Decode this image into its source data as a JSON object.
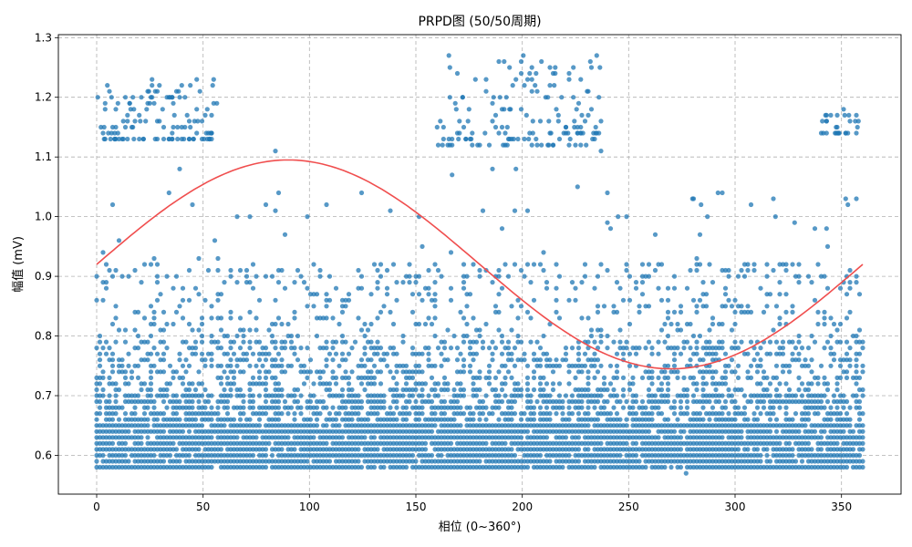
{
  "chart_data": {
    "type": "scatter",
    "title": "PRPD图 (50/50周期)",
    "xlabel": "相位 (0~360°)",
    "ylabel": "幅值 (mV)",
    "xlim": [
      -18,
      378
    ],
    "ylim": [
      0.535,
      1.305
    ],
    "xticks": [
      0,
      50,
      100,
      150,
      200,
      250,
      300,
      350
    ],
    "yticks": [
      0.6,
      0.7,
      0.8,
      0.9,
      1.0,
      1.1,
      1.2,
      1.3
    ],
    "grid": true,
    "colors": {
      "points": "#1f77b4",
      "sine": "#f04e4e"
    },
    "reference_sine": {
      "center": 0.92,
      "amplitude": 0.175,
      "x_start": 0,
      "x_end": 360
    },
    "phase_bin_deg": 1.5,
    "amplitude_step": 0.01,
    "point_density_by_amplitude": [
      {
        "range": [
          0.58,
          0.65
        ],
        "density": 0.93
      },
      {
        "range": [
          0.66,
          0.7
        ],
        "density": 0.62
      },
      {
        "range": [
          0.71,
          0.79
        ],
        "density": 0.38
      },
      {
        "range": [
          0.8,
          0.92
        ],
        "density": 0.14
      },
      {
        "range": [
          0.93,
          1.04
        ],
        "density": 0.012
      }
    ],
    "upper_clusters": [
      {
        "phase_range": [
          0,
          57
        ],
        "amplitude_range": [
          1.13,
          1.23
        ],
        "points": 120
      },
      {
        "phase_range": [
          160,
          237
        ],
        "amplitude_range": [
          1.12,
          1.27
        ],
        "points": 150
      },
      {
        "phase_range": [
          340,
          360
        ],
        "amplitude_range": [
          1.14,
          1.18
        ],
        "points": 30
      }
    ],
    "notable_points": [
      {
        "x": 4,
        "y": 1.13
      },
      {
        "x": 24,
        "y": 1.21
      },
      {
        "x": 26,
        "y": 1.22
      },
      {
        "x": 40,
        "y": 1.22
      },
      {
        "x": 55,
        "y": 1.23
      },
      {
        "x": 34,
        "y": 1.04
      },
      {
        "x": 39,
        "y": 1.08
      },
      {
        "x": 45,
        "y": 1.02
      },
      {
        "x": 84,
        "y": 1.11
      },
      {
        "x": 108,
        "y": 1.02
      },
      {
        "x": 138,
        "y": 1.01
      },
      {
        "x": 167,
        "y": 1.07
      },
      {
        "x": 178,
        "y": 1.23
      },
      {
        "x": 183,
        "y": 1.23
      },
      {
        "x": 186,
        "y": 1.08
      },
      {
        "x": 197,
        "y": 1.08
      },
      {
        "x": 201,
        "y": 1.22
      },
      {
        "x": 206,
        "y": 1.22
      },
      {
        "x": 215,
        "y": 1.22
      },
      {
        "x": 226,
        "y": 1.05
      },
      {
        "x": 232,
        "y": 1.26
      },
      {
        "x": 235,
        "y": 1.27
      },
      {
        "x": 237,
        "y": 1.11
      },
      {
        "x": 240,
        "y": 0.99
      },
      {
        "x": 245,
        "y": 1.0
      },
      {
        "x": 280,
        "y": 1.03
      },
      {
        "x": 284,
        "y": 1.02
      },
      {
        "x": 287,
        "y": 1.0
      },
      {
        "x": 292,
        "y": 1.04
      },
      {
        "x": 319,
        "y": 1.0
      },
      {
        "x": 328,
        "y": 0.99
      },
      {
        "x": 352,
        "y": 1.03
      },
      {
        "x": 353,
        "y": 1.02
      },
      {
        "x": 277,
        "y": 0.57
      },
      {
        "x": 343,
        "y": 0.98
      },
      {
        "x": 66,
        "y": 1.0
      }
    ]
  }
}
